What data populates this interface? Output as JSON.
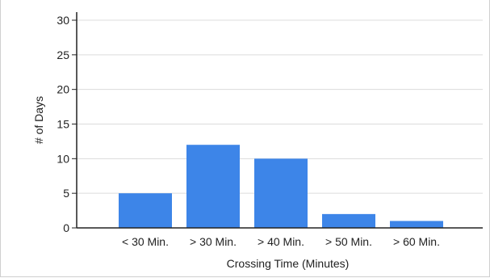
{
  "chart_data": {
    "type": "bar",
    "title": "",
    "xlabel": "Crossing Time (Minutes)",
    "ylabel": "# of Days",
    "categories": [
      "< 30 Min.",
      "> 30 Min.",
      "> 40 Min.",
      "> 50 Min.",
      "> 60 Min."
    ],
    "values": [
      5,
      12,
      10,
      2,
      1
    ],
    "ylim": [
      0,
      30
    ],
    "yticks": [
      "0",
      "5",
      "10",
      "15",
      "20",
      "25",
      "30"
    ],
    "grid": true,
    "legend": "none",
    "colors": {
      "bar": "#3d85e8",
      "grid": "#dcdcdc",
      "axis": "#222222"
    }
  }
}
